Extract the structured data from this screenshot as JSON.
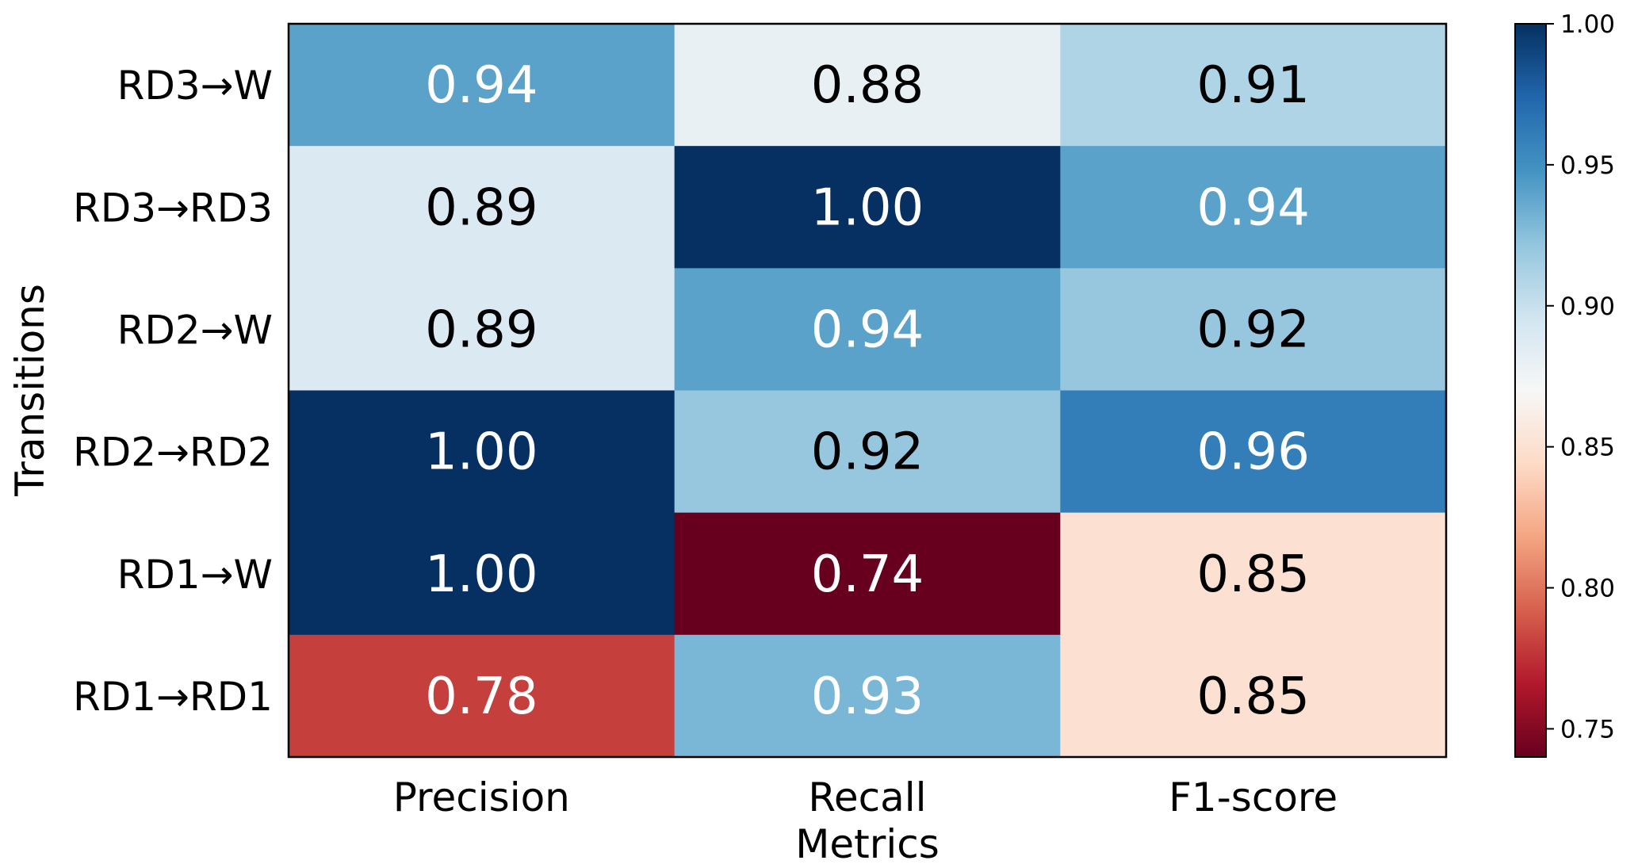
{
  "chart_data": {
    "type": "heatmap",
    "title": "",
    "xlabel": "Metrics",
    "ylabel": "Transitions",
    "x_categories": [
      "Precision",
      "Recall",
      "F1-score"
    ],
    "y_categories": [
      "RD3→W",
      "RD3→RD3",
      "RD2→W",
      "RD2→RD2",
      "RD1→W",
      "RD1→RD1"
    ],
    "values": [
      [
        0.94,
        0.88,
        0.91
      ],
      [
        0.89,
        1.0,
        0.94
      ],
      [
        0.89,
        0.94,
        0.92
      ],
      [
        1.0,
        0.92,
        0.96
      ],
      [
        1.0,
        0.74,
        0.85
      ],
      [
        0.78,
        0.93,
        0.85
      ]
    ],
    "value_labels": [
      [
        "0.94",
        "0.88",
        "0.91"
      ],
      [
        "0.89",
        "1.00",
        "0.94"
      ],
      [
        "0.89",
        "0.94",
        "0.92"
      ],
      [
        "1.00",
        "0.92",
        "0.96"
      ],
      [
        "1.00",
        "0.74",
        "0.85"
      ],
      [
        "0.78",
        "0.93",
        "0.85"
      ]
    ],
    "colormap": "RdBu",
    "colorbar": {
      "range": [
        0.74,
        1.0
      ],
      "ticks": [
        0.75,
        0.8,
        0.85,
        0.9,
        0.95,
        1.0
      ],
      "tick_labels": [
        "0.75",
        "0.80",
        "0.85",
        "0.90",
        "0.95",
        "1.00"
      ]
    }
  }
}
